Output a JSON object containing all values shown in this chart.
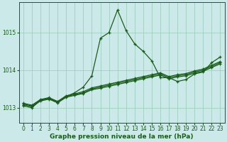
{
  "background_color": "#cbe9e9",
  "grid_color": "#99ccbb",
  "line_color": "#1a5c1a",
  "xlabel": "Graphe pression niveau de la mer (hPa)",
  "xlim": [
    -0.5,
    23.5
  ],
  "ylim": [
    1012.6,
    1015.8
  ],
  "yticks": [
    1013,
    1014,
    1015
  ],
  "xticks": [
    0,
    1,
    2,
    3,
    4,
    5,
    6,
    7,
    8,
    9,
    10,
    11,
    12,
    13,
    14,
    15,
    16,
    17,
    18,
    19,
    20,
    21,
    22,
    23
  ],
  "series_peaked_x": [
    0,
    1,
    2,
    3,
    4,
    5,
    6,
    7,
    8,
    9,
    10,
    11,
    12,
    13,
    14,
    15,
    16,
    17,
    18,
    19,
    20,
    21,
    22,
    23
  ],
  "series_peaked_y": [
    1013.05,
    1013.0,
    1013.2,
    1013.25,
    1013.15,
    1013.3,
    1013.4,
    1013.55,
    1013.85,
    1014.85,
    1015.0,
    1015.6,
    1015.05,
    1014.7,
    1014.5,
    1014.25,
    1013.8,
    1013.8,
    1013.7,
    1013.75,
    1013.9,
    1013.95,
    1014.2,
    1014.35
  ],
  "series_flat1_x": [
    0,
    1,
    2,
    3,
    4,
    5,
    6,
    7,
    8,
    9,
    10,
    11,
    12,
    13,
    14,
    15,
    16,
    17,
    18,
    19,
    20,
    21,
    22,
    23
  ],
  "series_flat1_y": [
    1013.1,
    1013.05,
    1013.2,
    1013.25,
    1013.15,
    1013.3,
    1013.35,
    1013.4,
    1013.5,
    1013.55,
    1013.6,
    1013.65,
    1013.7,
    1013.75,
    1013.8,
    1013.85,
    1013.9,
    1013.8,
    1013.85,
    1013.88,
    1013.95,
    1014.0,
    1014.1,
    1014.2
  ],
  "series_flat2_x": [
    0,
    1,
    2,
    3,
    4,
    5,
    6,
    7,
    8,
    9,
    10,
    11,
    12,
    13,
    14,
    15,
    16,
    17,
    18,
    19,
    20,
    21,
    22,
    23
  ],
  "series_flat2_y": [
    1013.12,
    1013.07,
    1013.22,
    1013.27,
    1013.17,
    1013.32,
    1013.37,
    1013.43,
    1013.53,
    1013.58,
    1013.63,
    1013.68,
    1013.73,
    1013.78,
    1013.83,
    1013.88,
    1013.93,
    1013.83,
    1013.88,
    1013.91,
    1013.98,
    1014.03,
    1014.13,
    1014.23
  ],
  "series_flat3_x": [
    0,
    1,
    2,
    3,
    4,
    5,
    6,
    7,
    8,
    9,
    10,
    11,
    12,
    13,
    14,
    15,
    16,
    17,
    18,
    19,
    20,
    21,
    22,
    23
  ],
  "series_flat3_y": [
    1013.08,
    1013.03,
    1013.18,
    1013.23,
    1013.13,
    1013.28,
    1013.33,
    1013.38,
    1013.48,
    1013.52,
    1013.57,
    1013.62,
    1013.67,
    1013.72,
    1013.77,
    1013.82,
    1013.87,
    1013.77,
    1013.82,
    1013.85,
    1013.92,
    1013.97,
    1014.07,
    1014.17
  ],
  "marker_size": 3,
  "linewidth": 0.9,
  "tick_fontsize": 5.5,
  "label_fontsize": 6.5
}
